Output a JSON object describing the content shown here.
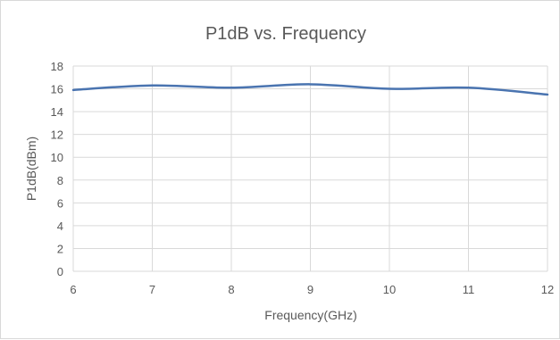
{
  "chart_data": {
    "type": "line",
    "title": "P1dB vs. Frequency",
    "xlabel": "Frequency(GHz)",
    "ylabel": "P1dB(dBm)",
    "xlim": [
      6,
      12
    ],
    "ylim": [
      0,
      18
    ],
    "x_ticks": [
      6,
      7,
      8,
      9,
      10,
      11,
      12
    ],
    "y_ticks": [
      0,
      2,
      4,
      6,
      8,
      10,
      12,
      14,
      16,
      18
    ],
    "grid": true,
    "legend": "none",
    "series": [
      {
        "color": "#4a74b0",
        "smooth": true,
        "x": [
          6,
          7,
          8,
          9,
          10,
          11,
          12
        ],
        "y": [
          15.9,
          16.3,
          16.1,
          16.4,
          16.0,
          16.1,
          15.5
        ]
      }
    ]
  }
}
